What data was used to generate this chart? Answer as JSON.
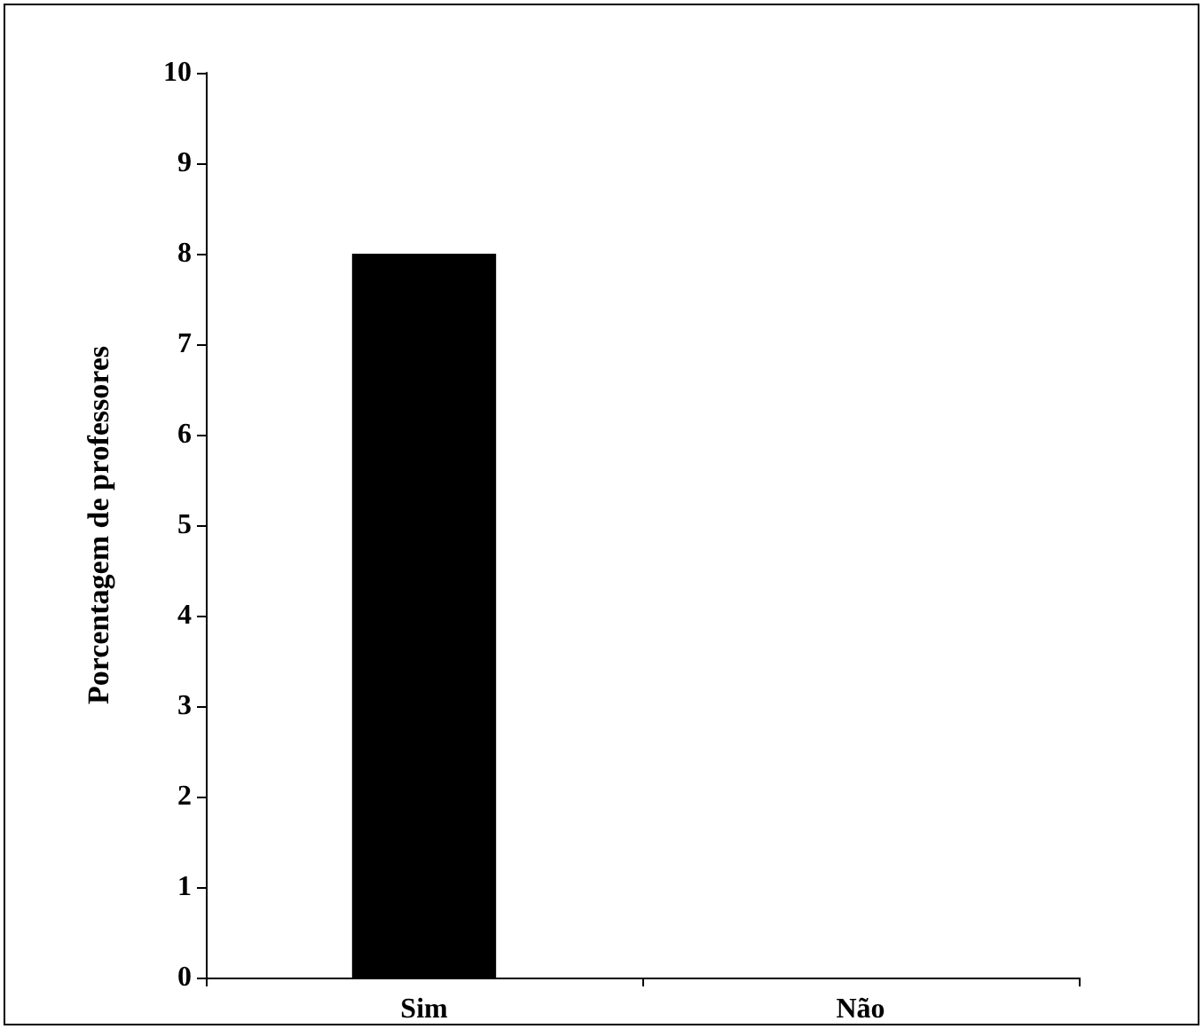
{
  "chart_data": {
    "type": "bar",
    "ylabel": "Porcentagem de professores",
    "categories": [
      "Sim",
      "Não"
    ],
    "values": [
      8,
      0
    ],
    "color": "#000000",
    "ylim": [
      0,
      10
    ],
    "yticks": [
      0,
      1,
      2,
      3,
      4,
      5,
      6,
      7,
      8,
      9,
      10
    ],
    "grid": false
  }
}
